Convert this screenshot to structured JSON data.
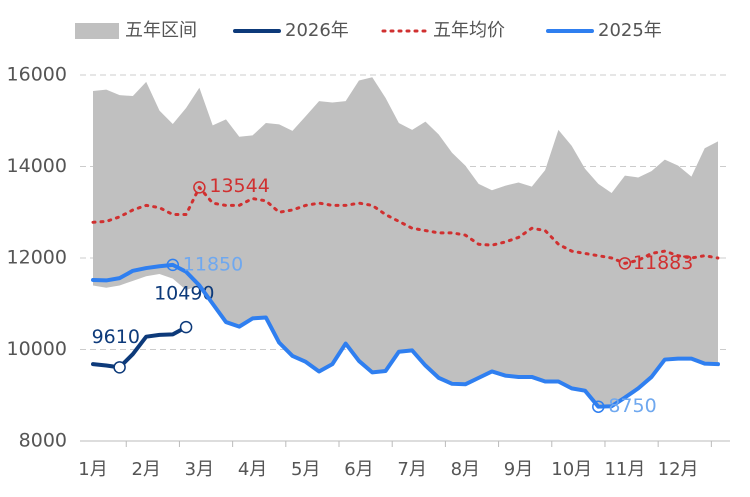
{
  "chart_data": {
    "type": "line",
    "categories": [
      "1月",
      null,
      null,
      null,
      "2月",
      null,
      null,
      null,
      "3月",
      null,
      null,
      null,
      "4月",
      null,
      null,
      null,
      "5月",
      null,
      null,
      null,
      "6月",
      null,
      null,
      null,
      "7月",
      null,
      null,
      null,
      "8月",
      null,
      null,
      null,
      "9月",
      null,
      null,
      null,
      "10月",
      null,
      null,
      null,
      "11月",
      null,
      null,
      null,
      "12月",
      null,
      null,
      null
    ],
    "ylim": [
      8000,
      16000
    ],
    "yticks": [
      8000,
      10000,
      12000,
      14000,
      16000
    ],
    "grid": true,
    "legend": "top",
    "series": [
      {
        "name": "五年区间",
        "kind": "band",
        "color": "#c0c0c0",
        "upper": [
          15650,
          15680,
          15560,
          15540,
          15850,
          15220,
          14930,
          15280,
          15720,
          14900,
          15030,
          14650,
          14680,
          14950,
          14920,
          14780,
          15100,
          15430,
          15400,
          15430,
          15880,
          15950,
          15500,
          14950,
          14800,
          14980,
          14700,
          14300,
          14020,
          13620,
          13480,
          13580,
          13650,
          13560,
          13920,
          14800,
          14450,
          13950,
          13620,
          13420,
          13800,
          13760,
          13900,
          14150,
          14020,
          13780,
          14400,
          14550
        ],
        "lower": [
          11400,
          11350,
          11400,
          11500,
          11600,
          11650,
          11550,
          11300,
          11400,
          11000,
          10600,
          10500,
          10680,
          10700,
          10150,
          9860,
          9730,
          9520,
          9680,
          10130,
          9750,
          9500,
          9530,
          9950,
          9980,
          9650,
          9380,
          9250,
          9240,
          9380,
          9520,
          9430,
          9400,
          9400,
          9300,
          9300,
          9150,
          9100,
          8750,
          8760,
          8950,
          9150,
          9400,
          9780,
          9800,
          9800,
          9690,
          9680
        ]
      },
      {
        "name": "2026年",
        "kind": "line",
        "color": "#0d3a7a",
        "labeled_points": [
          2,
          7
        ],
        "values": [
          9680,
          9650,
          9610,
          9900,
          10280,
          10320,
          10330,
          10490,
          null,
          null,
          null,
          null,
          null,
          null,
          null,
          null,
          null,
          null,
          null,
          null,
          null,
          null,
          null,
          null,
          null,
          null,
          null,
          null,
          null,
          null,
          null,
          null,
          null,
          null,
          null,
          null,
          null,
          null,
          null,
          null,
          null,
          null,
          null,
          null,
          null,
          null,
          null,
          null
        ]
      },
      {
        "name": "五年均价",
        "kind": "dotted",
        "color": "#d03030",
        "labeled_points": [
          8,
          40
        ],
        "values": [
          12780,
          12800,
          12900,
          13050,
          13150,
          13100,
          12950,
          12950,
          13544,
          13200,
          13150,
          13150,
          13300,
          13250,
          13000,
          13050,
          13150,
          13200,
          13150,
          13150,
          13200,
          13150,
          12950,
          12800,
          12650,
          12600,
          12550,
          12550,
          12500,
          12300,
          12280,
          12350,
          12450,
          12650,
          12600,
          12300,
          12150,
          12100,
          12050,
          12000,
          11883,
          11950,
          12100,
          12150,
          12050,
          12000,
          12050,
          12000
        ]
      },
      {
        "name": "2025年",
        "kind": "line",
        "color": "#2f7ff0",
        "labeled_points": [
          6,
          38
        ],
        "values": [
          11520,
          11510,
          11560,
          11720,
          11780,
          11820,
          11850,
          11700,
          11400,
          11000,
          10600,
          10500,
          10680,
          10700,
          10150,
          9860,
          9730,
          9520,
          9680,
          10130,
          9750,
          9500,
          9530,
          9950,
          9980,
          9650,
          9380,
          9250,
          9240,
          9380,
          9520,
          9430,
          9400,
          9400,
          9300,
          9300,
          9150,
          9100,
          8750,
          8760,
          8950,
          9150,
          9400,
          9780,
          9800,
          9800,
          9690,
          9680
        ]
      }
    ]
  }
}
